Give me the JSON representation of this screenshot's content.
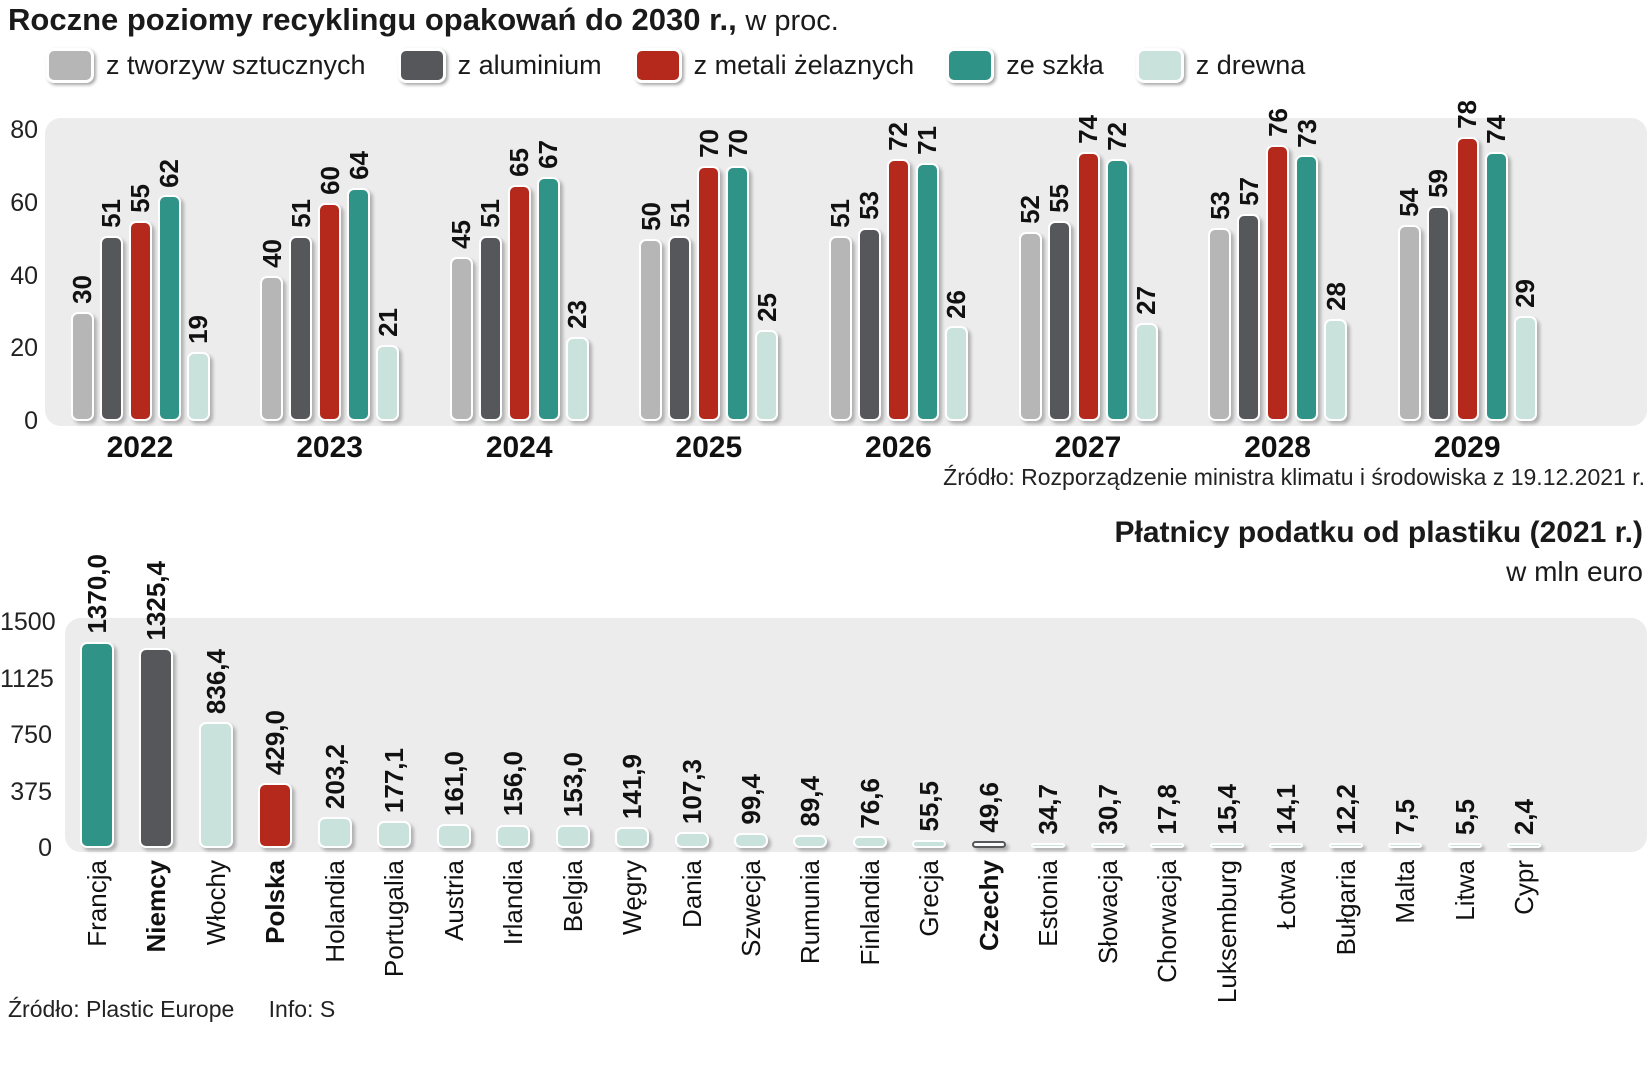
{
  "chart_data": [
    {
      "type": "bar",
      "title": "Roczne poziomy recyklingu opakowań do 2030 r.,",
      "title_suffix": "w proc.",
      "categories": [
        "2022",
        "2023",
        "2024",
        "2025",
        "2026",
        "2027",
        "2028",
        "2029"
      ],
      "series": [
        {
          "name": "z tworzyw sztucznych",
          "color": "#b6b6b6",
          "values": [
            30,
            40,
            45,
            50,
            51,
            52,
            53,
            54
          ]
        },
        {
          "name": "z aluminium",
          "color": "#55575a",
          "values": [
            51,
            51,
            51,
            51,
            53,
            55,
            57,
            59
          ]
        },
        {
          "name": "z metali żelaznych",
          "color": "#b5281c",
          "values": [
            55,
            60,
            65,
            70,
            72,
            74,
            76,
            78
          ]
        },
        {
          "name": "ze szkła",
          "color": "#2f9388",
          "values": [
            62,
            64,
            67,
            70,
            71,
            72,
            73,
            74
          ]
        },
        {
          "name": "z drewna",
          "color": "#c9e2dc",
          "values": [
            19,
            21,
            23,
            25,
            26,
            27,
            28,
            29
          ]
        }
      ],
      "ylim": [
        0,
        80
      ],
      "yticks": [
        80,
        60,
        40,
        20,
        0
      ],
      "grid": false,
      "legend_position": "top",
      "source": "Źródło: Rozporządzenie ministra klimatu i środowiska z 19.12.2021 r."
    },
    {
      "type": "bar",
      "title": "Płatnicy podatku od plastiku (2021 r.)",
      "subtitle": "w mln euro",
      "categories": [
        "Francja",
        "Niemcy",
        "Włochy",
        "Polska",
        "Holandia",
        "Portugalia",
        "Austria",
        "Irlandia",
        "Belgia",
        "Węgry",
        "Dania",
        "Szwecja",
        "Rumunia",
        "Finlandia",
        "Grecja",
        "Czechy",
        "Estonia",
        "Słowacja",
        "Chorwacja",
        "Luksemburg",
        "Łotwa",
        "Bułgaria",
        "Malta",
        "Litwa",
        "Cypr"
      ],
      "values": [
        1370.0,
        1325.4,
        836.4,
        429.0,
        203.2,
        177.1,
        161.0,
        156.0,
        153.0,
        141.9,
        107.3,
        99.4,
        89.4,
        76.6,
        55.5,
        49.6,
        34.7,
        30.7,
        17.8,
        15.4,
        14.1,
        12.2,
        7.5,
        5.5,
        2.4
      ],
      "value_labels": [
        "1370,0",
        "1325,4",
        "836,4",
        "429,0",
        "203,2",
        "177,1",
        "161,0",
        "156,0",
        "153,0",
        "141,9",
        "107,3",
        "99,4",
        "89,4",
        "76,6",
        "55,5",
        "49,6",
        "34,7",
        "30,7",
        "17,8",
        "15,4",
        "14,1",
        "12,2",
        "7,5",
        "5,5",
        "2,4"
      ],
      "bold_categories": [
        "Niemcy",
        "Polska",
        "Czechy"
      ],
      "palette": {
        "teal": "#2f9388",
        "dark": "#55575a",
        "red": "#b5281c",
        "pale": "#c9e2dc",
        "white": "#fcfcfc"
      },
      "bar_colors": [
        "teal",
        "dark",
        "pale",
        "red",
        "pale",
        "pale",
        "pale",
        "pale",
        "pale",
        "pale",
        "pale",
        "pale",
        "pale",
        "pale",
        "pale",
        "white",
        "pale",
        "pale",
        "pale",
        "pale",
        "pale",
        "pale",
        "pale",
        "pale",
        "pale"
      ],
      "ylim": [
        0,
        1500
      ],
      "yticks": [
        1500,
        1125,
        750,
        375,
        0
      ],
      "grid": false,
      "source_left": "Źródło: Plastic Europe",
      "source_right": "Info: S"
    }
  ]
}
